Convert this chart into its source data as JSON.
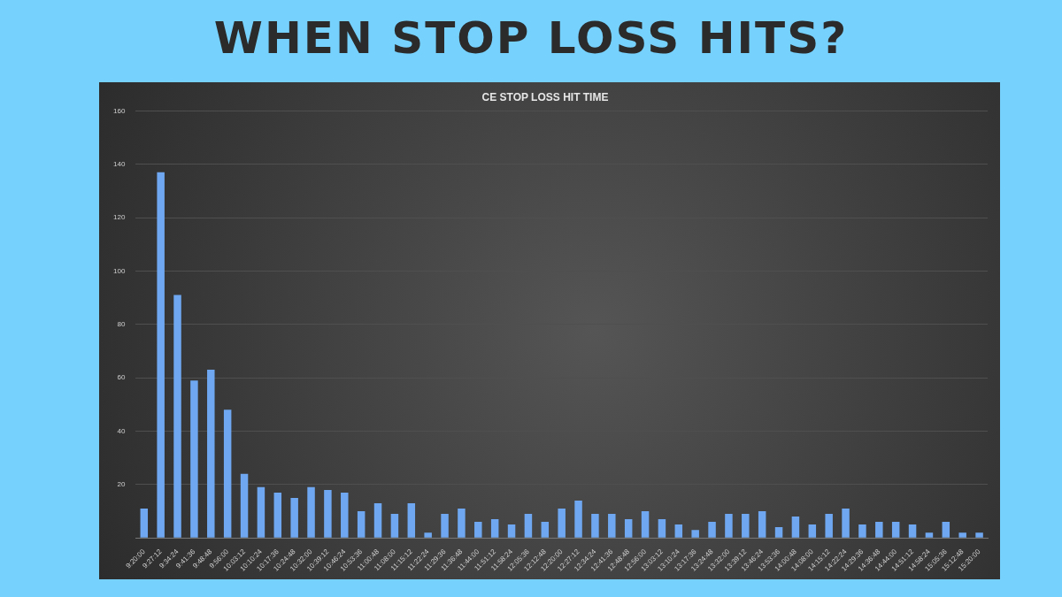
{
  "chart_data": {
    "type": "bar",
    "title": "WHEN STOP LOSS HITS?",
    "subtitle": "CE STOP LOSS HIT TIME",
    "categories": [
      "9:20:00",
      "9:27:12",
      "9:34:24",
      "9:41:36",
      "9:48:48",
      "9:56:00",
      "10:03:12",
      "10:10:24",
      "10:17:36",
      "10:24:48",
      "10:32:00",
      "10:39:12",
      "10:46:24",
      "10:53:36",
      "11:00:48",
      "11:08:00",
      "11:15:12",
      "11:22:24",
      "11:29:36",
      "11:36:48",
      "11:44:00",
      "11:51:12",
      "11:58:24",
      "12:05:36",
      "12:12:48",
      "12:20:00",
      "12:27:12",
      "12:34:24",
      "12:41:36",
      "12:48:48",
      "12:56:00",
      "13:03:12",
      "13:10:24",
      "13:17:36",
      "13:24:48",
      "13:32:00",
      "13:39:12",
      "13:46:24",
      "13:53:36",
      "14:00:48",
      "14:08:00",
      "14:15:12",
      "14:22:24",
      "14:29:36",
      "14:36:48",
      "14:44:00",
      "14:51:12",
      "14:58:24",
      "15:05:36",
      "15:12:48",
      "15:20:00"
    ],
    "values": [
      11,
      137,
      91,
      59,
      63,
      48,
      24,
      19,
      17,
      15,
      19,
      18,
      17,
      10,
      13,
      9,
      13,
      2,
      9,
      11,
      6,
      7,
      5,
      9,
      6,
      11,
      14,
      9,
      9,
      7,
      10,
      7,
      5,
      3,
      6,
      9,
      9,
      10,
      4,
      8,
      5,
      9,
      11,
      5,
      6,
      6,
      5,
      2,
      6,
      2,
      2
    ],
    "color": "#6fa8f0",
    "ylim": [
      0,
      160
    ],
    "yticks": [
      {
        "value": 0,
        "label": null
      },
      20,
      40,
      60,
      80,
      100,
      120,
      140,
      160
    ],
    "grid": "y",
    "legend": false
  }
}
